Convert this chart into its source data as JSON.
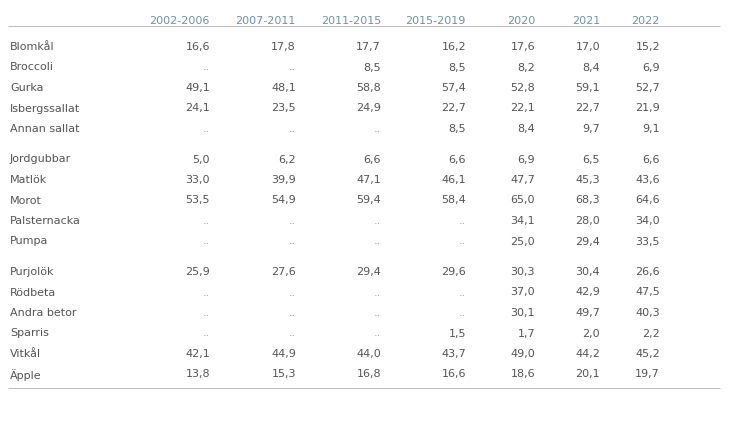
{
  "columns": [
    "2002-2006",
    "2007-2011",
    "2011-2015",
    "2015-2019",
    "2020",
    "2021",
    "2022"
  ],
  "rows": [
    {
      "label": "Blomkål",
      "group": 1,
      "values": [
        "16,6",
        "17,8",
        "17,7",
        "16,2",
        "17,6",
        "17,0",
        "15,2"
      ]
    },
    {
      "label": "Broccoli",
      "group": 1,
      "values": [
        "..",
        "..",
        "8,5",
        "8,5",
        "8,2",
        "8,4",
        "6,9"
      ]
    },
    {
      "label": "Gurka",
      "group": 1,
      "values": [
        "49,1",
        "48,1",
        "58,8",
        "57,4",
        "52,8",
        "59,1",
        "52,7"
      ]
    },
    {
      "label": "Isbergssallat",
      "group": 1,
      "values": [
        "24,1",
        "23,5",
        "24,9",
        "22,7",
        "22,1",
        "22,7",
        "21,9"
      ]
    },
    {
      "label": "Annan sallat",
      "group": 1,
      "values": [
        "..",
        "..",
        "..",
        "8,5",
        "8,4",
        "9,7",
        "9,1"
      ]
    },
    {
      "label": "Jordgubbar",
      "group": 2,
      "values": [
        "5,0",
        "6,2",
        "6,6",
        "6,6",
        "6,9",
        "6,5",
        "6,6"
      ]
    },
    {
      "label": "Matlök",
      "group": 2,
      "values": [
        "33,0",
        "39,9",
        "47,1",
        "46,1",
        "47,7",
        "45,3",
        "43,6"
      ]
    },
    {
      "label": "Morot",
      "group": 2,
      "values": [
        "53,5",
        "54,9",
        "59,4",
        "58,4",
        "65,0",
        "68,3",
        "64,6"
      ]
    },
    {
      "label": "Palsternacka",
      "group": 2,
      "values": [
        "..",
        "..",
        "..",
        "..",
        "34,1",
        "28,0",
        "34,0"
      ]
    },
    {
      "label": "Pumpa",
      "group": 2,
      "values": [
        "..",
        "..",
        "..",
        "..",
        "25,0",
        "29,4",
        "33,5"
      ]
    },
    {
      "label": "Purjolök",
      "group": 3,
      "values": [
        "25,9",
        "27,6",
        "29,4",
        "29,6",
        "30,3",
        "30,4",
        "26,6"
      ]
    },
    {
      "label": "Rödbeta",
      "group": 3,
      "values": [
        "..",
        "..",
        "..",
        "..",
        "37,0",
        "42,9",
        "47,5"
      ]
    },
    {
      "label": "Andra betor",
      "group": 3,
      "values": [
        "..",
        "..",
        "..",
        "..",
        "30,1",
        "49,7",
        "40,3"
      ]
    },
    {
      "label": "Sparris",
      "group": 3,
      "values": [
        "..",
        "..",
        "..",
        "1,5",
        "1,7",
        "2,0",
        "2,2"
      ]
    },
    {
      "label": "Vitkål",
      "group": 3,
      "values": [
        "42,1",
        "44,9",
        "44,0",
        "43,7",
        "49,0",
        "44,2",
        "45,2"
      ]
    },
    {
      "label": "Äpple",
      "group": 3,
      "values": [
        "13,8",
        "15,3",
        "16,8",
        "16,6",
        "18,6",
        "20,1",
        "19,7"
      ]
    }
  ],
  "dot_color": "#999999",
  "text_color": "#555555",
  "header_color": "#7090b0",
  "line_color": "#bbbbbb",
  "bg_color": "#ffffff",
  "font_size": 8.0,
  "header_font_size": 8.0
}
